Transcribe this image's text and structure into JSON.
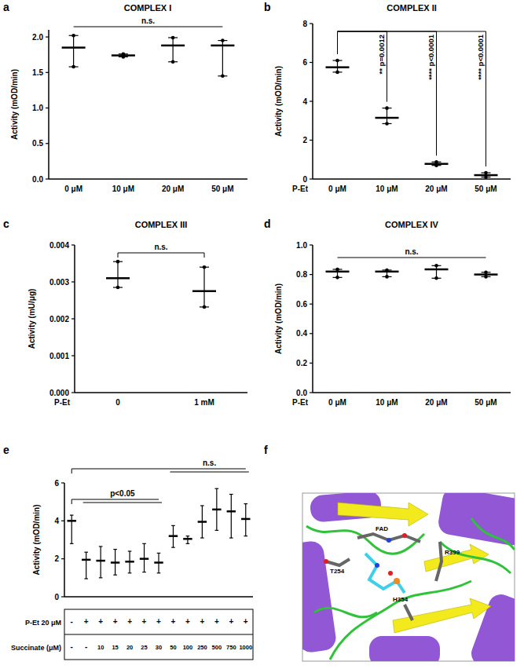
{
  "chart_data": [
    {
      "panel": "a",
      "type": "errorbar",
      "title": "COMPLEX I",
      "y_label": "Activity (mOD/min)",
      "marker": "circle",
      "categories": [
        "0 μM",
        "10 μM",
        "20 μM",
        "50 μM"
      ],
      "values": [
        1.85,
        1.74,
        1.88,
        1.88
      ],
      "min": [
        1.58,
        1.72,
        1.65,
        1.45
      ],
      "max": [
        2.02,
        1.76,
        1.99,
        1.95
      ],
      "ylim": [
        0,
        2.1
      ],
      "yticks": [
        {
          "value": 0,
          "label": "0.0"
        },
        0.5,
        {
          "value": 1,
          "label": "1.0"
        },
        1.5,
        {
          "value": 2,
          "label": "2.0"
        }
      ],
      "annotations": [
        {
          "text": "n.s.",
          "from": 0,
          "to": [
            1,
            2,
            3
          ]
        }
      ]
    },
    {
      "panel": "b",
      "type": "errorbar",
      "title": "COMPLEX II",
      "y_label": "Activity (mOD/min)",
      "x_label": "P-Et",
      "marker": "circle",
      "categories": [
        "0 μM",
        "10 μM",
        "20 μM",
        "50 μM"
      ],
      "values": [
        5.75,
        3.15,
        0.78,
        0.2
      ],
      "min": [
        5.5,
        2.85,
        0.7,
        0.1
      ],
      "max": [
        6.1,
        3.65,
        0.88,
        0.32
      ],
      "ylim": [
        0,
        8
      ],
      "yticks": [
        0,
        2,
        4,
        6,
        8
      ],
      "annotations": [
        {
          "text": "** p=0.0012",
          "from": 0,
          "to": [
            1
          ]
        },
        {
          "text": "**** p<0.0001",
          "from": 0,
          "to": [
            2
          ]
        },
        {
          "text": "**** p<0.0001",
          "from": 0,
          "to": [
            3
          ]
        }
      ]
    },
    {
      "panel": "c",
      "type": "errorbar",
      "title": "COMPLEX III",
      "y_label": "Activity (mU/μg)",
      "x_label": "P-Et",
      "marker": "circle",
      "categories": [
        "0",
        "1 mM"
      ],
      "values": [
        0.0031,
        0.00275
      ],
      "min": [
        0.00285,
        0.00232
      ],
      "max": [
        0.00355,
        0.0034
      ],
      "ylim": [
        0,
        0.004
      ],
      "yticks": [
        {
          "value": 0,
          "label": "0.000"
        },
        {
          "value": 0.001,
          "label": "0.001"
        },
        {
          "value": 0.002,
          "label": "0.002"
        },
        {
          "value": 0.003,
          "label": "0.003"
        },
        {
          "value": 0.004,
          "label": "0.004"
        }
      ],
      "annotations": [
        {
          "text": "n.s.",
          "from": 0,
          "to": [
            1
          ]
        }
      ]
    },
    {
      "panel": "d",
      "type": "errorbar",
      "title": "COMPLEX IV",
      "y_label": "Activity (mOD/min)",
      "x_label": "P-Et",
      "marker": "circle",
      "categories": [
        "0 μM",
        "10 μM",
        "20 μM",
        "50 μM"
      ],
      "values": [
        0.82,
        0.82,
        0.835,
        0.8
      ],
      "min": [
        0.78,
        0.785,
        0.775,
        0.785
      ],
      "max": [
        0.835,
        0.83,
        0.86,
        0.815
      ],
      "ylim": [
        0,
        1
      ],
      "yticks": [
        {
          "value": 0,
          "label": "0.0"
        },
        0.2,
        0.4,
        0.6,
        0.8,
        {
          "value": 1,
          "label": "1.0"
        }
      ],
      "annotations": [
        {
          "text": "n.s.",
          "from": 0,
          "to": [
            1,
            2,
            3
          ]
        }
      ]
    },
    {
      "panel": "e",
      "type": "errorbar",
      "y_label": "Activity (mOD/min)",
      "x_table": [
        {
          "label": "P-Et 20 μM",
          "cells": [
            "-",
            "+",
            "+",
            "+",
            "+",
            "+",
            "+",
            "+",
            "+",
            "+",
            "+",
            "+",
            "+"
          ]
        },
        {
          "label": "Succinate (μM)",
          "cells": [
            "-",
            "-",
            10,
            15,
            20,
            25,
            30,
            50,
            100,
            250,
            500,
            750,
            1000
          ]
        }
      ],
      "values": [
        4.0,
        1.95,
        1.9,
        1.8,
        1.85,
        2.0,
        1.8,
        3.2,
        3.05,
        3.95,
        4.6,
        4.5,
        4.1
      ],
      "min": [
        2.8,
        0.95,
        1.0,
        1.15,
        1.25,
        1.3,
        1.25,
        2.6,
        2.8,
        3.1,
        3.5,
        3.1,
        3.2
      ],
      "max": [
        4.3,
        2.35,
        2.65,
        2.5,
        2.4,
        2.8,
        2.3,
        3.75,
        3.2,
        4.8,
        5.7,
        5.4,
        4.9
      ],
      "ylim": [
        0,
        6
      ],
      "yticks": [
        0,
        2,
        4,
        6
      ],
      "annotations": [
        {
          "text": "n.s.",
          "from": 0,
          "to": [
            7,
            8,
            9,
            10,
            11,
            12
          ]
        },
        {
          "text": "p<0.05",
          "from": 0,
          "to": [
            1,
            2,
            3,
            4,
            5,
            6
          ]
        }
      ]
    }
  ],
  "structure": {
    "panel": "f",
    "labels": [
      "FAD",
      "T254",
      "H354",
      "R399"
    ]
  }
}
